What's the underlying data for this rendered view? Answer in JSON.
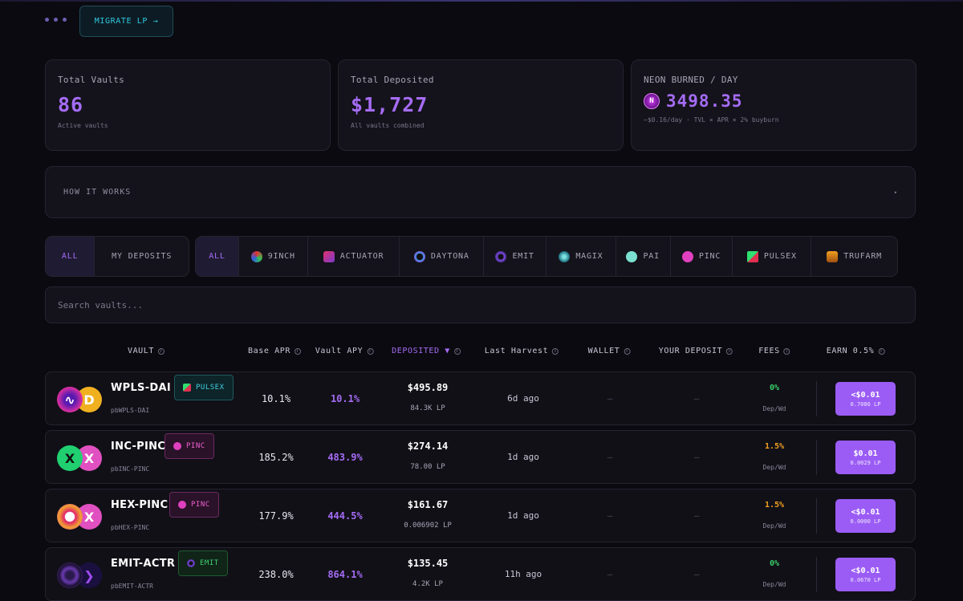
{
  "header": {
    "migrate_label": "MIGRATE LP →"
  },
  "stats": [
    {
      "label": "Total Vaults",
      "value": "86",
      "sub": "Active vaults"
    },
    {
      "label": "Total Deposited",
      "value": "$1,727",
      "sub": "All vaults combined"
    },
    {
      "label": "NEON BURNED / DAY",
      "value": "3498.35",
      "sub": "~$0.16/day · TVL × APR × 2% buyburn"
    }
  ],
  "how_it_works": {
    "label": "HOW IT WORKS",
    "caret": "▾"
  },
  "filters": {
    "scope": [
      "ALL",
      "MY DEPOSITS"
    ],
    "dex": [
      "ALL",
      "9INCH",
      "ACTUATOR",
      "DAYTONA",
      "EMIT",
      "MAGIX",
      "PAI",
      "PINC",
      "PULSEX",
      "TRUFARM"
    ]
  },
  "search": {
    "placeholder": "Search vaults..."
  },
  "table": {
    "headers": [
      "VAULT",
      "Base APR",
      "Vault APY",
      "DEPOSITED ▼",
      "Last Harvest",
      "WALLET",
      "YOUR DEPOSIT",
      "FEES",
      "EARN 0.5%"
    ],
    "rows": [
      {
        "pair": "WPLS-DAI",
        "sub": "pbWPLS-DAI",
        "dex": "PULSEX",
        "base_apr": "10.1%",
        "apy": "10.1%",
        "deposited": "$495.89",
        "lp": "84.3K LP",
        "harvest": "6d ago",
        "wallet": "—",
        "your_deposit": "—",
        "fee": "0%",
        "fee_sub": "Dep/Wd",
        "earn": "<$0.01",
        "earn_sub": "0.7086 LP"
      },
      {
        "pair": "INC-PINC",
        "sub": "pbINC-PINC",
        "dex": "PINC",
        "base_apr": "185.2%",
        "apy": "483.9%",
        "deposited": "$274.14",
        "lp": "78.00 LP",
        "harvest": "1d ago",
        "wallet": "—",
        "your_deposit": "—",
        "fee": "1.5%",
        "fee_sub": "Dep/Wd",
        "earn": "$0.01",
        "earn_sub": "0.0029 LP"
      },
      {
        "pair": "HEX-PINC",
        "sub": "pbHEX-PINC",
        "dex": "PINC",
        "base_apr": "177.9%",
        "apy": "444.5%",
        "deposited": "$161.67",
        "lp": "0.006902 LP",
        "harvest": "1d ago",
        "wallet": "—",
        "your_deposit": "—",
        "fee": "1.5%",
        "fee_sub": "Dep/Wd",
        "earn": "<$0.01",
        "earn_sub": "0.0000 LP"
      },
      {
        "pair": "EMIT-ACTR",
        "sub": "pbEMIT-ACTR",
        "dex": "EMIT",
        "base_apr": "238.0%",
        "apy": "864.1%",
        "deposited": "$135.45",
        "lp": "4.2K LP",
        "harvest": "11h ago",
        "wallet": "—",
        "your_deposit": "—",
        "fee": "0%",
        "fee_sub": "Dep/Wd",
        "earn": "<$0.01",
        "earn_sub": "0.0670 LP"
      }
    ]
  },
  "colors": {
    "accent": "#a56cf5",
    "fee_zero": "#3bd06a",
    "fee_nonzero": "#f0a020",
    "earn_button": "#9b5cf5"
  }
}
